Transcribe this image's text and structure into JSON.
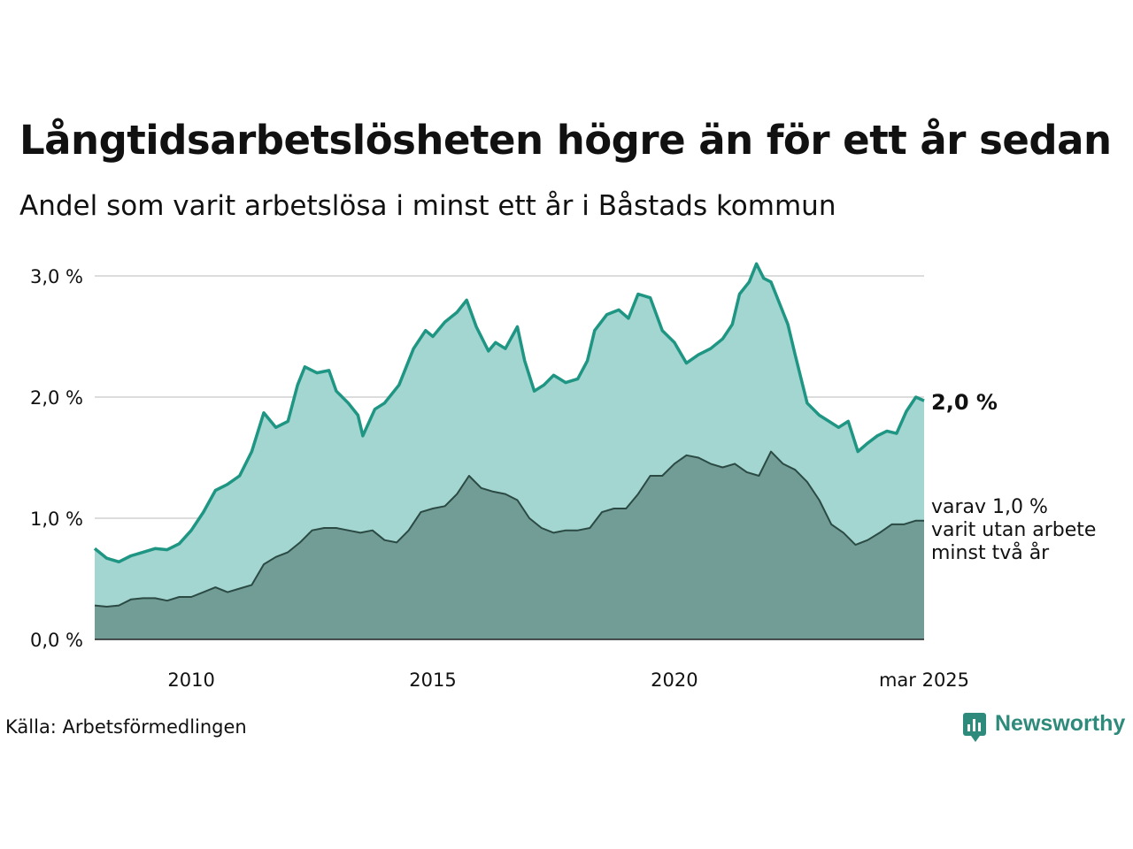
{
  "title": "Långtidsarbetslösheten högre än för ett år sedan",
  "subtitle": "Andel som varit arbetslösa i minst ett år i Båstads kommun",
  "source": "Källa: Arbetsförmedlingen",
  "brand": {
    "name": "Newsworthy",
    "icon": "newsworthy-logo-icon",
    "color": "#2e8b7b"
  },
  "colors": {
    "line_total": "#1f9583",
    "area_total": "#a3d6d0",
    "line_long": "#2b4a44",
    "area_long": "#719d96",
    "grid": "#dcdcdc"
  },
  "end_label": "2,0 %",
  "sub_label": [
    "varav 1,0 %",
    "varit utan arbete",
    "minst två år"
  ],
  "chart_data": {
    "type": "area",
    "y_ticks": [
      {
        "value": 0,
        "label": "0,0 %"
      },
      {
        "value": 1,
        "label": "1,0 %"
      },
      {
        "value": 2,
        "label": "2,0 %"
      },
      {
        "value": 3,
        "label": "3,0 %"
      }
    ],
    "x_ticks": [
      {
        "value": 2010.0,
        "label": "2010"
      },
      {
        "value": 2015.0,
        "label": "2015"
      },
      {
        "value": 2020.0,
        "label": "2020"
      },
      {
        "value": 2025.17,
        "label": "mar 2025"
      }
    ],
    "ylim": [
      0,
      3.0
    ],
    "xlim": [
      2008.0,
      2025.17
    ],
    "grid": true,
    "series": [
      {
        "points": [
          [
            2008.0,
            0.75
          ],
          [
            2008.25,
            0.67
          ],
          [
            2008.5,
            0.64
          ],
          [
            2008.75,
            0.69
          ],
          [
            2009.0,
            0.72
          ],
          [
            2009.25,
            0.75
          ],
          [
            2009.5,
            0.74
          ],
          [
            2009.75,
            0.79
          ],
          [
            2010.0,
            0.9
          ],
          [
            2010.25,
            1.05
          ],
          [
            2010.5,
            1.23
          ],
          [
            2010.75,
            1.28
          ],
          [
            2011.0,
            1.35
          ],
          [
            2011.25,
            1.55
          ],
          [
            2011.5,
            1.87
          ],
          [
            2011.75,
            1.75
          ],
          [
            2012.0,
            1.8
          ],
          [
            2012.2,
            2.1
          ],
          [
            2012.35,
            2.25
          ],
          [
            2012.6,
            2.2
          ],
          [
            2012.85,
            2.22
          ],
          [
            2013.0,
            2.05
          ],
          [
            2013.25,
            1.95
          ],
          [
            2013.45,
            1.85
          ],
          [
            2013.55,
            1.68
          ],
          [
            2013.8,
            1.9
          ],
          [
            2014.0,
            1.95
          ],
          [
            2014.3,
            2.1
          ],
          [
            2014.6,
            2.4
          ],
          [
            2014.85,
            2.55
          ],
          [
            2015.0,
            2.5
          ],
          [
            2015.25,
            2.62
          ],
          [
            2015.5,
            2.7
          ],
          [
            2015.7,
            2.8
          ],
          [
            2015.9,
            2.58
          ],
          [
            2016.15,
            2.38
          ],
          [
            2016.3,
            2.45
          ],
          [
            2016.5,
            2.4
          ],
          [
            2016.75,
            2.58
          ],
          [
            2016.9,
            2.3
          ],
          [
            2017.1,
            2.05
          ],
          [
            2017.3,
            2.1
          ],
          [
            2017.5,
            2.18
          ],
          [
            2017.75,
            2.12
          ],
          [
            2018.0,
            2.15
          ],
          [
            2018.2,
            2.3
          ],
          [
            2018.35,
            2.55
          ],
          [
            2018.6,
            2.68
          ],
          [
            2018.85,
            2.72
          ],
          [
            2019.05,
            2.65
          ],
          [
            2019.25,
            2.85
          ],
          [
            2019.5,
            2.82
          ],
          [
            2019.75,
            2.55
          ],
          [
            2020.0,
            2.45
          ],
          [
            2020.25,
            2.28
          ],
          [
            2020.5,
            2.35
          ],
          [
            2020.75,
            2.4
          ],
          [
            2021.0,
            2.48
          ],
          [
            2021.2,
            2.6
          ],
          [
            2021.35,
            2.85
          ],
          [
            2021.55,
            2.95
          ],
          [
            2021.7,
            3.1
          ],
          [
            2021.85,
            2.98
          ],
          [
            2022.0,
            2.95
          ],
          [
            2022.15,
            2.8
          ],
          [
            2022.35,
            2.6
          ],
          [
            2022.5,
            2.35
          ],
          [
            2022.75,
            1.95
          ],
          [
            2023.0,
            1.85
          ],
          [
            2023.2,
            1.8
          ],
          [
            2023.4,
            1.75
          ],
          [
            2023.6,
            1.8
          ],
          [
            2023.8,
            1.55
          ],
          [
            2024.0,
            1.62
          ],
          [
            2024.2,
            1.68
          ],
          [
            2024.4,
            1.72
          ],
          [
            2024.6,
            1.7
          ],
          [
            2024.8,
            1.88
          ],
          [
            2025.0,
            2.0
          ],
          [
            2025.17,
            1.97
          ]
        ]
      },
      {
        "points": [
          [
            2008.0,
            0.28
          ],
          [
            2008.25,
            0.27
          ],
          [
            2008.5,
            0.28
          ],
          [
            2008.75,
            0.33
          ],
          [
            2009.0,
            0.34
          ],
          [
            2009.25,
            0.34
          ],
          [
            2009.5,
            0.32
          ],
          [
            2009.75,
            0.35
          ],
          [
            2010.0,
            0.35
          ],
          [
            2010.25,
            0.39
          ],
          [
            2010.5,
            0.43
          ],
          [
            2010.75,
            0.39
          ],
          [
            2011.0,
            0.42
          ],
          [
            2011.25,
            0.45
          ],
          [
            2011.5,
            0.62
          ],
          [
            2011.75,
            0.68
          ],
          [
            2012.0,
            0.72
          ],
          [
            2012.25,
            0.8
          ],
          [
            2012.5,
            0.9
          ],
          [
            2012.75,
            0.92
          ],
          [
            2013.0,
            0.92
          ],
          [
            2013.25,
            0.9
          ],
          [
            2013.5,
            0.88
          ],
          [
            2013.75,
            0.9
          ],
          [
            2014.0,
            0.82
          ],
          [
            2014.25,
            0.8
          ],
          [
            2014.5,
            0.9
          ],
          [
            2014.75,
            1.05
          ],
          [
            2015.0,
            1.08
          ],
          [
            2015.25,
            1.1
          ],
          [
            2015.5,
            1.2
          ],
          [
            2015.75,
            1.35
          ],
          [
            2016.0,
            1.25
          ],
          [
            2016.25,
            1.22
          ],
          [
            2016.5,
            1.2
          ],
          [
            2016.75,
            1.15
          ],
          [
            2017.0,
            1.0
          ],
          [
            2017.25,
            0.92
          ],
          [
            2017.5,
            0.88
          ],
          [
            2017.75,
            0.9
          ],
          [
            2018.0,
            0.9
          ],
          [
            2018.25,
            0.92
          ],
          [
            2018.5,
            1.05
          ],
          [
            2018.75,
            1.08
          ],
          [
            2019.0,
            1.08
          ],
          [
            2019.25,
            1.2
          ],
          [
            2019.5,
            1.35
          ],
          [
            2019.75,
            1.35
          ],
          [
            2020.0,
            1.45
          ],
          [
            2020.25,
            1.52
          ],
          [
            2020.5,
            1.5
          ],
          [
            2020.75,
            1.45
          ],
          [
            2021.0,
            1.42
          ],
          [
            2021.25,
            1.45
          ],
          [
            2021.5,
            1.38
          ],
          [
            2021.75,
            1.35
          ],
          [
            2022.0,
            1.55
          ],
          [
            2022.25,
            1.45
          ],
          [
            2022.5,
            1.4
          ],
          [
            2022.75,
            1.3
          ],
          [
            2023.0,
            1.15
          ],
          [
            2023.25,
            0.95
          ],
          [
            2023.5,
            0.88
          ],
          [
            2023.75,
            0.78
          ],
          [
            2024.0,
            0.82
          ],
          [
            2024.25,
            0.88
          ],
          [
            2024.5,
            0.95
          ],
          [
            2024.75,
            0.95
          ],
          [
            2025.0,
            0.98
          ],
          [
            2025.17,
            0.98
          ]
        ]
      }
    ]
  }
}
